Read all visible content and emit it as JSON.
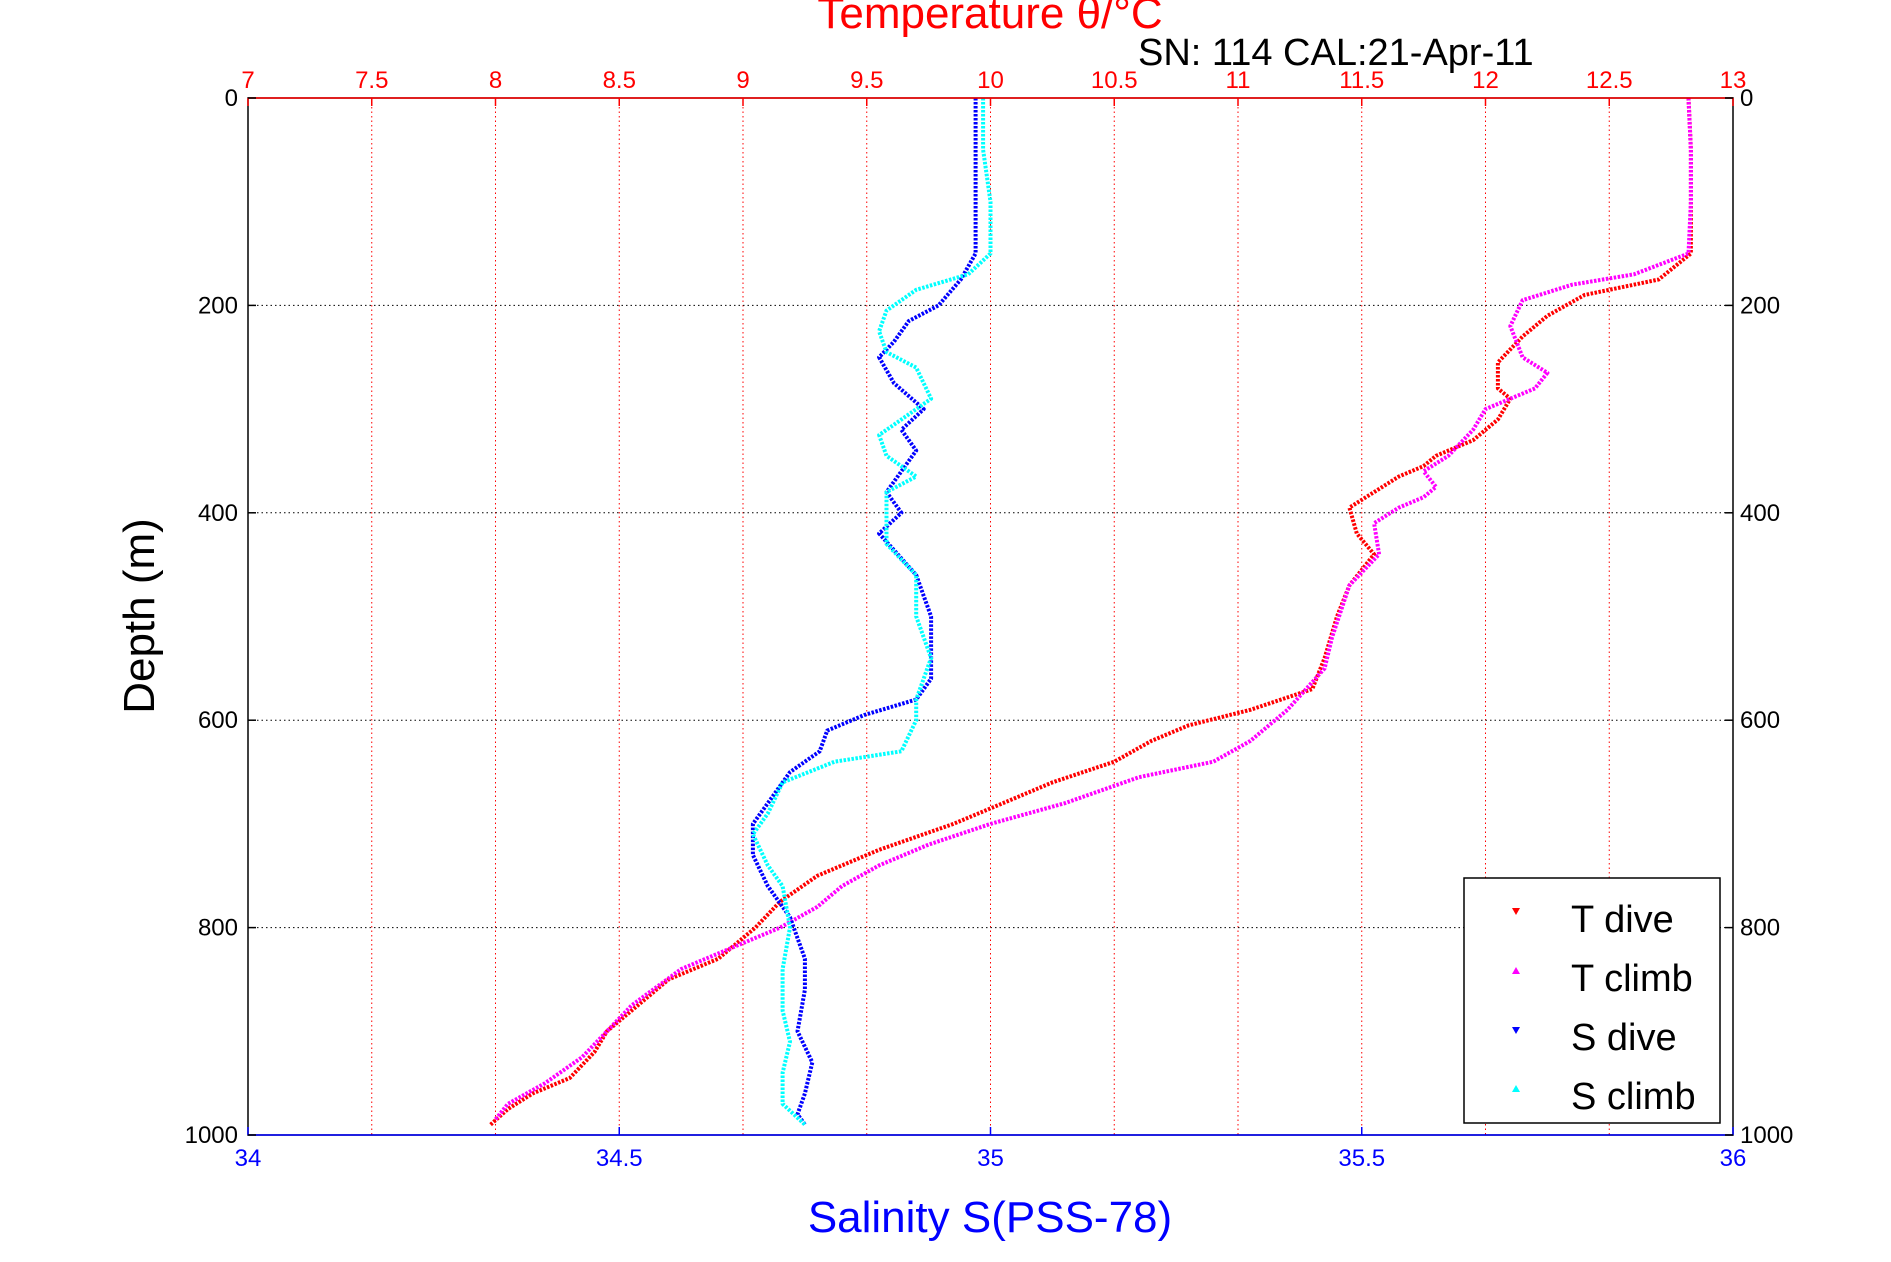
{
  "chart_data": {
    "type": "line",
    "title": "Temperature θ/°C",
    "subtitle": "SN: 114  CAL:21-Apr-11",
    "xlabel": "Salinity S(PSS-78)",
    "ylabel": "Depth (m)",
    "x_bottom": {
      "label": "Salinity S(PSS-78)",
      "lim": [
        34,
        36
      ],
      "ticks": [
        "34",
        "34.5",
        "35",
        "35.5",
        "36"
      ],
      "color": "#0000ff"
    },
    "x_top": {
      "label": "Temperature θ/°C",
      "lim": [
        7,
        13
      ],
      "ticks": [
        "7",
        "7.5",
        "8",
        "8.5",
        "9",
        "9.5",
        "10",
        "10.5",
        "11",
        "11.5",
        "12",
        "12.5",
        "13"
      ],
      "color": "#ff0000"
    },
    "y": {
      "label": "Depth (m)",
      "lim": [
        0,
        1000
      ],
      "reversed": true,
      "ticks": [
        "0",
        "200",
        "400",
        "600",
        "800",
        "1000"
      ]
    },
    "grid": true,
    "legend_position": "bottom-right",
    "series": [
      {
        "name": "T dive",
        "axis": "top",
        "color": "#ff0000",
        "points": [
          [
            12.82,
            0
          ],
          [
            12.83,
            50
          ],
          [
            12.83,
            100
          ],
          [
            12.83,
            150
          ],
          [
            12.7,
            175
          ],
          [
            12.4,
            190
          ],
          [
            12.25,
            210
          ],
          [
            12.15,
            230
          ],
          [
            12.05,
            255
          ],
          [
            12.05,
            280
          ],
          [
            12.1,
            290
          ],
          [
            12.05,
            310
          ],
          [
            11.95,
            330
          ],
          [
            11.8,
            345
          ],
          [
            11.75,
            355
          ],
          [
            11.65,
            365
          ],
          [
            11.55,
            380
          ],
          [
            11.45,
            395
          ],
          [
            11.48,
            420
          ],
          [
            11.55,
            440
          ],
          [
            11.45,
            470
          ],
          [
            11.4,
            500
          ],
          [
            11.35,
            540
          ],
          [
            11.3,
            570
          ],
          [
            11.05,
            590
          ],
          [
            10.8,
            605
          ],
          [
            10.65,
            620
          ],
          [
            10.5,
            640
          ],
          [
            10.25,
            660
          ],
          [
            10.05,
            680
          ],
          [
            9.85,
            700
          ],
          [
            9.55,
            725
          ],
          [
            9.3,
            750
          ],
          [
            9.15,
            775
          ],
          [
            9.05,
            800
          ],
          [
            8.9,
            830
          ],
          [
            8.7,
            850
          ],
          [
            8.55,
            880
          ],
          [
            8.45,
            900
          ],
          [
            8.4,
            920
          ],
          [
            8.3,
            945
          ],
          [
            8.15,
            960
          ],
          [
            8.05,
            975
          ],
          [
            7.98,
            990
          ]
        ]
      },
      {
        "name": "T climb",
        "axis": "top",
        "color": "#ff00ff",
        "points": [
          [
            12.82,
            0
          ],
          [
            12.83,
            50
          ],
          [
            12.83,
            100
          ],
          [
            12.82,
            150
          ],
          [
            12.6,
            170
          ],
          [
            12.35,
            180
          ],
          [
            12.15,
            195
          ],
          [
            12.1,
            220
          ],
          [
            12.15,
            250
          ],
          [
            12.25,
            265
          ],
          [
            12.2,
            280
          ],
          [
            12.0,
            300
          ],
          [
            11.95,
            320
          ],
          [
            11.85,
            345
          ],
          [
            11.75,
            360
          ],
          [
            11.8,
            375
          ],
          [
            11.75,
            385
          ],
          [
            11.65,
            395
          ],
          [
            11.55,
            410
          ],
          [
            11.57,
            440
          ],
          [
            11.45,
            470
          ],
          [
            11.38,
            520
          ],
          [
            11.35,
            550
          ],
          [
            11.2,
            590
          ],
          [
            11.05,
            620
          ],
          [
            10.9,
            640
          ],
          [
            10.6,
            655
          ],
          [
            10.3,
            680
          ],
          [
            10.0,
            700
          ],
          [
            9.75,
            720
          ],
          [
            9.55,
            740
          ],
          [
            9.4,
            760
          ],
          [
            9.3,
            780
          ],
          [
            9.15,
            800
          ],
          [
            8.95,
            820
          ],
          [
            8.75,
            840
          ],
          [
            8.55,
            875
          ],
          [
            8.45,
            900
          ],
          [
            8.35,
            925
          ],
          [
            8.2,
            950
          ],
          [
            8.05,
            970
          ],
          [
            8.0,
            985
          ]
        ]
      },
      {
        "name": "S dive",
        "axis": "bottom",
        "color": "#0000ff",
        "points": [
          [
            34.98,
            0
          ],
          [
            34.98,
            50
          ],
          [
            34.98,
            100
          ],
          [
            34.98,
            150
          ],
          [
            34.96,
            175
          ],
          [
            34.93,
            200
          ],
          [
            34.89,
            215
          ],
          [
            34.87,
            235
          ],
          [
            34.85,
            250
          ],
          [
            34.87,
            275
          ],
          [
            34.91,
            300
          ],
          [
            34.88,
            320
          ],
          [
            34.9,
            340
          ],
          [
            34.88,
            360
          ],
          [
            34.86,
            380
          ],
          [
            34.88,
            400
          ],
          [
            34.85,
            420
          ],
          [
            34.9,
            460
          ],
          [
            34.92,
            500
          ],
          [
            34.92,
            560
          ],
          [
            34.9,
            580
          ],
          [
            34.83,
            595
          ],
          [
            34.78,
            610
          ],
          [
            34.77,
            630
          ],
          [
            34.73,
            650
          ],
          [
            34.7,
            680
          ],
          [
            34.68,
            700
          ],
          [
            34.68,
            730
          ],
          [
            34.7,
            760
          ],
          [
            34.73,
            790
          ],
          [
            34.75,
            830
          ],
          [
            34.75,
            860
          ],
          [
            34.74,
            900
          ],
          [
            34.76,
            930
          ],
          [
            34.75,
            960
          ],
          [
            34.74,
            980
          ],
          [
            34.75,
            990
          ]
        ]
      },
      {
        "name": "S climb",
        "axis": "bottom",
        "color": "#00ffff",
        "points": [
          [
            34.99,
            0
          ],
          [
            34.99,
            50
          ],
          [
            35.0,
            100
          ],
          [
            35.0,
            150
          ],
          [
            34.97,
            170
          ],
          [
            34.9,
            185
          ],
          [
            34.86,
            205
          ],
          [
            34.85,
            225
          ],
          [
            34.86,
            245
          ],
          [
            34.9,
            260
          ],
          [
            34.92,
            290
          ],
          [
            34.88,
            310
          ],
          [
            34.85,
            325
          ],
          [
            34.86,
            345
          ],
          [
            34.9,
            365
          ],
          [
            34.86,
            380
          ],
          [
            34.86,
            400
          ],
          [
            34.86,
            430
          ],
          [
            34.9,
            460
          ],
          [
            34.9,
            500
          ],
          [
            34.92,
            540
          ],
          [
            34.9,
            580
          ],
          [
            34.9,
            600
          ],
          [
            34.88,
            630
          ],
          [
            34.79,
            640
          ],
          [
            34.72,
            660
          ],
          [
            34.7,
            690
          ],
          [
            34.68,
            710
          ],
          [
            34.7,
            740
          ],
          [
            34.72,
            760
          ],
          [
            34.73,
            800
          ],
          [
            34.72,
            840
          ],
          [
            34.72,
            880
          ],
          [
            34.73,
            910
          ],
          [
            34.72,
            940
          ],
          [
            34.72,
            970
          ],
          [
            34.75,
            990
          ]
        ]
      }
    ]
  }
}
